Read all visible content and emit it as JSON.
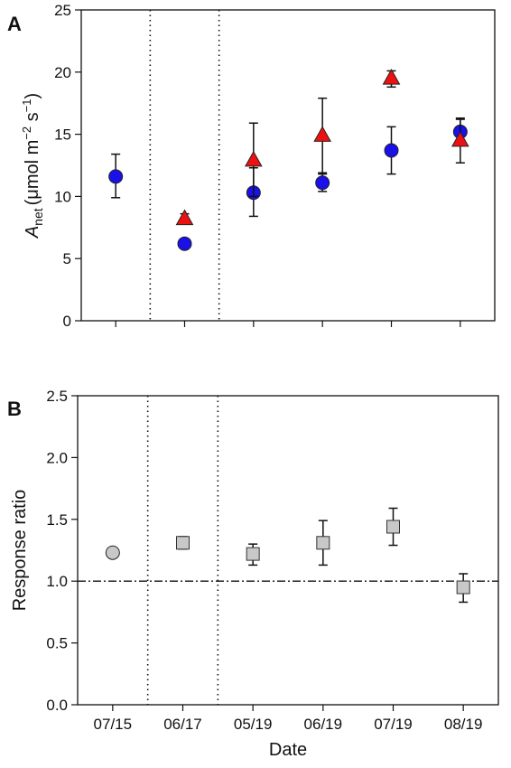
{
  "chart_data": [
    {
      "panel": "A",
      "type": "scatter",
      "ylabel": "A",
      "ylabel_sub": "net",
      "ylabel_units": "(μmol m",
      "ylabel_exp1": "−2",
      "ylabel_mid": " s",
      "ylabel_exp2": "−1",
      "ylabel_close": ")",
      "ylim": [
        0,
        25
      ],
      "yticks": [
        "0",
        "5",
        "10",
        "15",
        "20",
        "25"
      ],
      "x_positions": 6,
      "vlines_after": [
        1,
        2
      ],
      "series": [
        {
          "marker": "circle",
          "color": "#1a10e8",
          "points": [
            {
              "x": 1,
              "y": 11.6,
              "lo": 9.9,
              "hi": 13.4
            },
            {
              "x": 2,
              "y": 6.2,
              "lo": 5.8,
              "hi": 6.6
            },
            {
              "x": 3,
              "y": 10.3,
              "lo": 8.4,
              "hi": 12.3
            },
            {
              "x": 4,
              "y": 11.1,
              "lo": 10.4,
              "hi": 11.8
            },
            {
              "x": 5,
              "y": 13.7,
              "lo": 11.8,
              "hi": 15.6
            },
            {
              "x": 6,
              "y": 15.2,
              "lo": 14.2,
              "hi": 16.2
            }
          ]
        },
        {
          "marker": "triangle",
          "color": "#ee1111",
          "points": [
            {
              "x": 2,
              "y": 8.2,
              "lo": 7.8,
              "hi": 8.6
            },
            {
              "x": 3,
              "y": 12.9,
              "lo": 10.0,
              "hi": 15.9
            },
            {
              "x": 4,
              "y": 14.9,
              "lo": 11.9,
              "hi": 17.9
            },
            {
              "x": 5,
              "y": 19.5,
              "lo": 18.8,
              "hi": 20.1
            },
            {
              "x": 6,
              "y": 14.5,
              "lo": 12.7,
              "hi": 16.3
            }
          ]
        }
      ]
    },
    {
      "panel": "B",
      "type": "scatter",
      "ylabel": "Response ratio",
      "xlabel": "Date",
      "ylim": [
        0,
        2.5
      ],
      "yticks": [
        "0.0",
        "0.5",
        "1.0",
        "1.5",
        "2.0",
        "2.5"
      ],
      "categories": [
        "07/15",
        "06/17",
        "05/19",
        "06/19",
        "07/19",
        "08/19"
      ],
      "vlines_after": [
        1,
        2
      ],
      "reference_line": 1.0,
      "series": [
        {
          "marker": "circle",
          "color": "#c8c8c8",
          "points": [
            {
              "x": 1,
              "y": 1.23
            }
          ]
        },
        {
          "marker": "square",
          "color": "#c8c8c8",
          "points": [
            {
              "x": 2,
              "y": 1.31,
              "lo": 1.26,
              "hi": 1.36
            },
            {
              "x": 3,
              "y": 1.22,
              "lo": 1.13,
              "hi": 1.3
            },
            {
              "x": 4,
              "y": 1.31,
              "lo": 1.13,
              "hi": 1.49
            },
            {
              "x": 5,
              "y": 1.44,
              "lo": 1.29,
              "hi": 1.59
            },
            {
              "x": 6,
              "y": 0.95,
              "lo": 0.83,
              "hi": 1.06
            }
          ]
        }
      ]
    }
  ]
}
